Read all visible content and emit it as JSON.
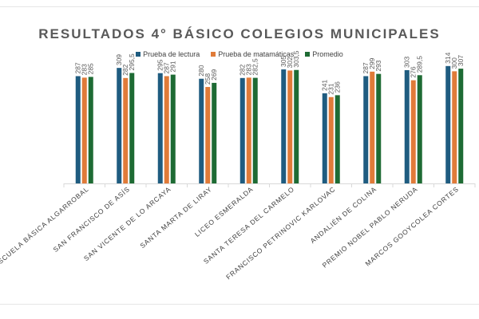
{
  "chart_data": {
    "type": "bar",
    "title": "RESULTADOS 4° BÁSICO COLEGIOS MUNICIPALES",
    "categories": [
      "ESCUELA BÁSICA ALGARROBAL",
      "SAN FRANCISCO DE ASÍS",
      "SAN VICENTE DE LO ARCAYA",
      "SANTA MARTA DE LIRAY",
      "LICEO ESMERALDA",
      "SANTA TERESA DEL CARMELO",
      "FRANCISCO PETRINOVIC KARLOVAC",
      "ANDALIÉN DE COLINA",
      "PREMIO NOBEL PABLO NERUDA",
      "MARCOS GOOYCOLEA CORTES"
    ],
    "series": [
      {
        "name": "Prueba de lectura",
        "color": "#1f5c80",
        "values": [
          287,
          309,
          295,
          280,
          282,
          305,
          241,
          287,
          303,
          314
        ],
        "labels": [
          "287",
          "309",
          "295",
          "280",
          "282",
          "305",
          "241",
          "287",
          "303",
          "314"
        ]
      },
      {
        "name": "Prueba de matamáticas",
        "color": "#e07b39",
        "values": [
          283,
          282,
          287,
          258,
          283,
          302,
          231,
          299,
          276,
          300
        ],
        "labels": [
          "283",
          "282",
          "287",
          "258",
          "283",
          "302",
          "231",
          "299",
          "276",
          "300"
        ]
      },
      {
        "name": "Promedio",
        "color": "#1e6b34",
        "values": [
          285,
          295.5,
          291,
          269,
          282.5,
          303.5,
          236,
          293,
          289.5,
          307
        ],
        "labels": [
          "285",
          "295,5",
          "291",
          "269",
          "282,5",
          "303,5",
          "236",
          "293",
          "289,5",
          "307"
        ]
      }
    ],
    "ylim": [
      0,
      320
    ],
    "grid": false,
    "legend_position": "top"
  }
}
